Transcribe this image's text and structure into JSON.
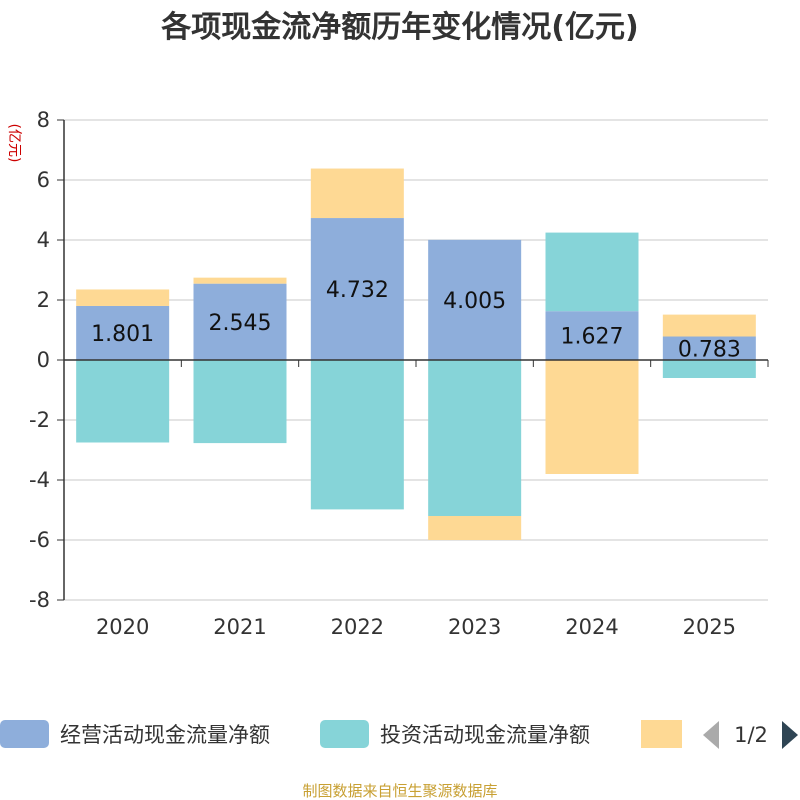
{
  "chart_data": {
    "type": "bar",
    "stacked": true,
    "title": "各项现金流净额历年变化情况(亿元)",
    "ylabel": "(亿元)",
    "xlabel": "",
    "ylim": [
      -8,
      8
    ],
    "yticks": [
      8,
      6,
      4,
      2,
      0,
      -2,
      -4,
      -6,
      -8
    ],
    "categories": [
      "2020",
      "2021",
      "2022",
      "2023",
      "2024",
      "2025"
    ],
    "series": [
      {
        "name": "经营活动现金流量净额",
        "color": "#8eaedb",
        "values": [
          1.801,
          2.545,
          4.732,
          4.005,
          1.627,
          0.783
        ],
        "labels": [
          "1.801",
          "2.545",
          "4.732",
          "4.005",
          "1.627",
          "0.783"
        ]
      },
      {
        "name": "投资活动现金流量净额",
        "color": "#86d4d8",
        "values": [
          -2.75,
          -2.77,
          -4.98,
          -5.2,
          2.62,
          -0.6
        ]
      },
      {
        "name": "",
        "color": "#fed994",
        "values": [
          0.55,
          0.2,
          1.65,
          -0.8,
          -3.8,
          0.73
        ]
      }
    ],
    "legend": {
      "position": "bottom",
      "page": "1/2"
    }
  },
  "footer": {
    "source": "制图数据来自恒生聚源数据库"
  }
}
